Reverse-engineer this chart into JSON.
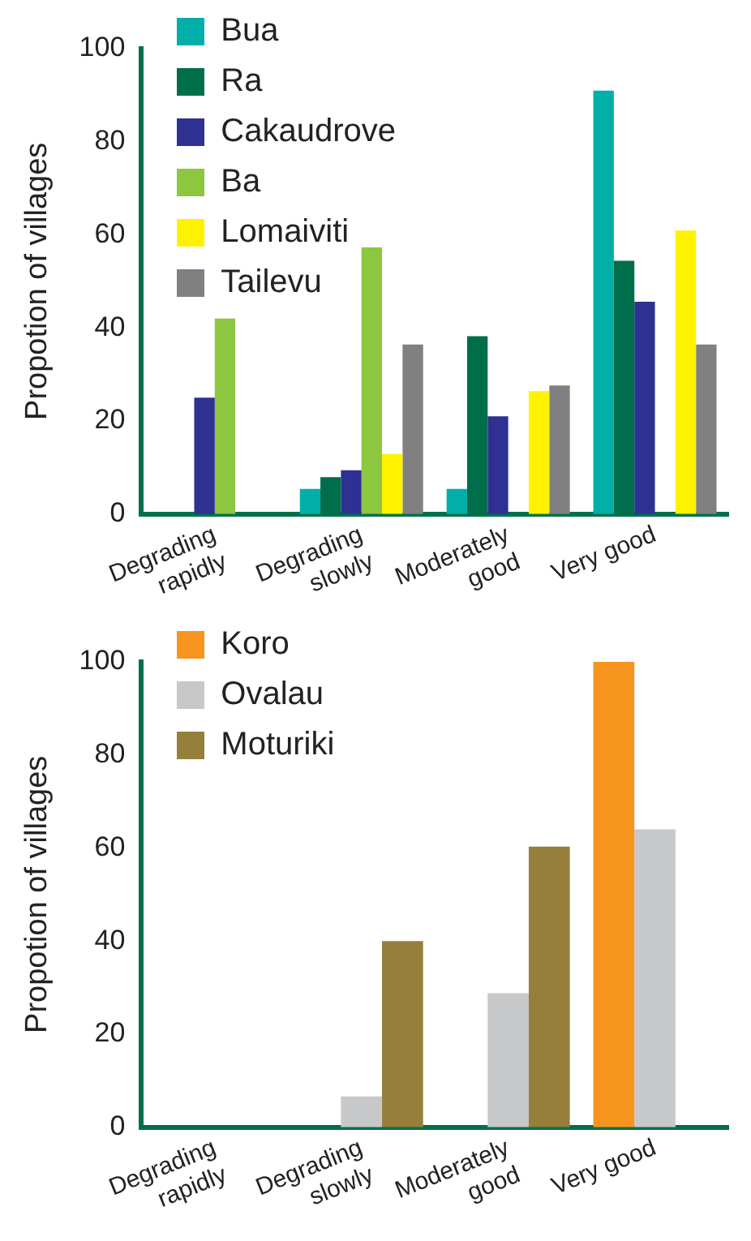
{
  "chart_data": [
    {
      "type": "bar",
      "ylabel": "Propotion of villages",
      "categories": [
        "Degrading rapidly",
        "Degrading slowly",
        "Moderately good",
        "Very good"
      ],
      "series": [
        {
          "name": "Bua",
          "color": "#00b0a8",
          "values": [
            null,
            5.4,
            5.4,
            91
          ]
        },
        {
          "name": "Ra",
          "color": "#006e4a",
          "values": [
            null,
            7.9,
            38.2,
            54.4
          ]
        },
        {
          "name": "Cakaudrove",
          "color": "#2e3192",
          "values": [
            25,
            9.4,
            21,
            45.6
          ]
        },
        {
          "name": "Ba",
          "color": "#8dc63f",
          "values": [
            42,
            57.3,
            null,
            null
          ]
        },
        {
          "name": "Lomaiviti",
          "color": "#fff200",
          "values": [
            null,
            12.9,
            26.4,
            60.9
          ]
        },
        {
          "name": "Tailevu",
          "color": "#808083",
          "values": [
            null,
            36.4,
            27.6,
            36.4
          ]
        }
      ],
      "ylim": [
        0,
        100
      ],
      "yticks": [
        0,
        20,
        40,
        60,
        80,
        100
      ],
      "grid": false,
      "legend": "top left"
    },
    {
      "type": "bar",
      "ylabel": "Propotion of villages",
      "categories": [
        "Degrading rapidly",
        "Degrading slowly",
        "Moderately good",
        "Very good"
      ],
      "series": [
        {
          "name": "Koro",
          "color": "#f7941d",
          "values": [
            null,
            null,
            null,
            100
          ]
        },
        {
          "name": "Ovalau",
          "color": "#c7c8ca",
          "values": [
            null,
            6.6,
            28.8,
            64
          ]
        },
        {
          "name": "Moturiki",
          "color": "#957f3b",
          "values": [
            null,
            40,
            60.3,
            null
          ]
        }
      ],
      "ylim": [
        0,
        100
      ],
      "yticks": [
        0,
        20,
        40,
        60,
        80,
        100
      ],
      "grid": false,
      "legend": "top left"
    }
  ]
}
